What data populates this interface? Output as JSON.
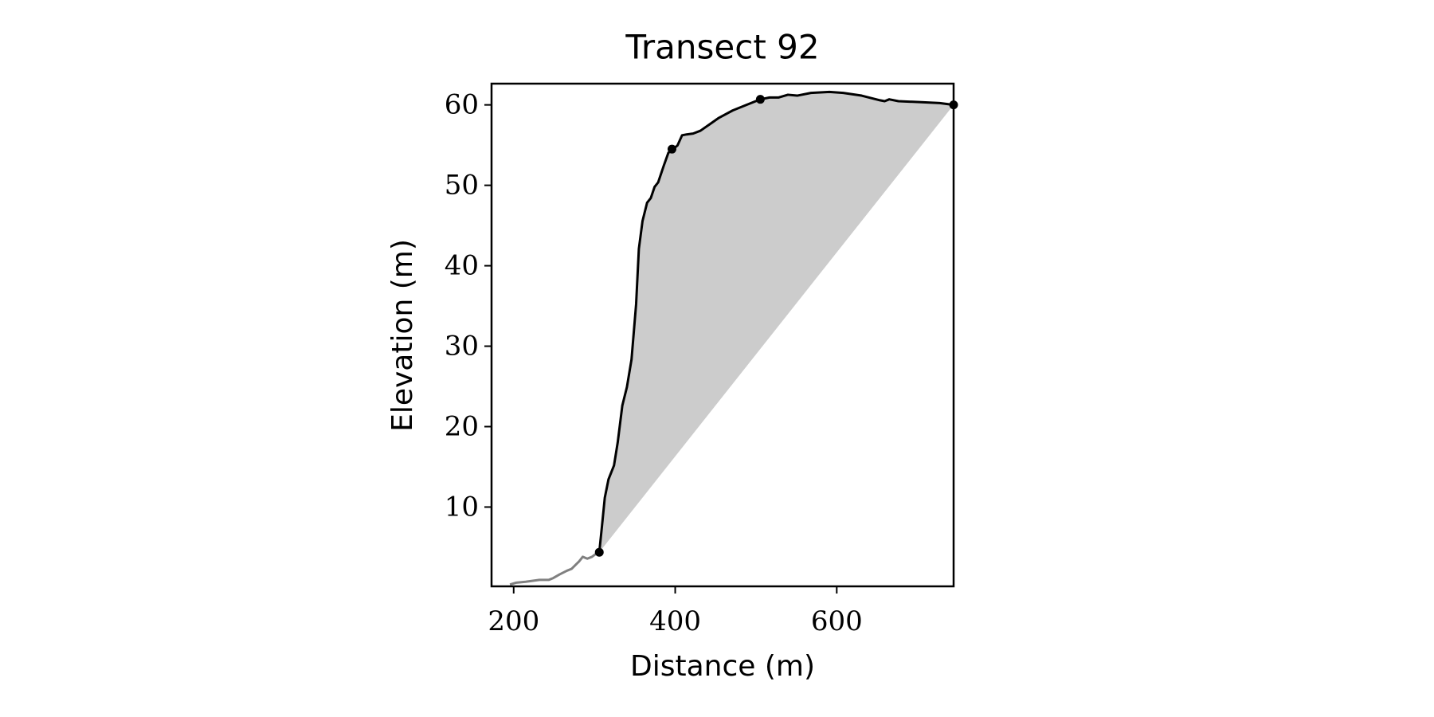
{
  "chart_data": {
    "type": "line",
    "title": "Transect 92",
    "x_label": "Distance (m)",
    "y_label": "Elevation (m)",
    "xlim": [
      172.6,
      744.7
    ],
    "ylim": [
      0.14,
      62.64
    ],
    "xticks": [
      200,
      400,
      600
    ],
    "yticks": [
      10,
      20,
      30,
      40,
      50,
      60
    ],
    "grid": false,
    "fill_color": "#cccccc",
    "series": [
      {
        "color": "#808080",
        "x": [
          195.4,
          203.4,
          214.8,
          231.9,
          243.3,
          249.0,
          257.0,
          266.1,
          271.8,
          277.5,
          280.9,
          285.5,
          291.2,
          296.9,
          301.4,
          306.0
        ],
        "values": [
          0.37,
          0.6,
          0.71,
          0.94,
          0.94,
          1.17,
          1.63,
          2.09,
          2.32,
          2.89,
          3.23,
          3.81,
          3.58,
          3.81,
          4.15,
          4.38
        ]
      },
      {
        "color": "#000000",
        "x": [
          306.0,
          309.4,
          312.8,
          317.4,
          324.2,
          328.8,
          334.5,
          340.2,
          345.9,
          351.6,
          355.0,
          359.5,
          365.2,
          369.8,
          374.4,
          378.9,
          385.8,
          391.5,
          397.2,
          402.8,
          408.5,
          414.2,
          422.2,
          431.3,
          442.7,
          454.1,
          471.2,
          488.3,
          505.4,
          516.8,
          528.2,
          539.6,
          551.0,
          568.1,
          590.9,
          608.0,
          630.8,
          653.6,
          659.3,
          665.0,
          676.4,
          704.8,
          727.6,
          744.7
        ],
        "values": [
          4.38,
          7.71,
          11.15,
          13.44,
          15.16,
          18.03,
          22.61,
          24.91,
          28.35,
          35.23,
          42.11,
          45.55,
          47.84,
          48.42,
          49.79,
          50.37,
          52.43,
          54.04,
          54.5,
          54.95,
          56.22,
          56.33,
          56.44,
          56.79,
          57.59,
          58.39,
          59.31,
          60.0,
          60.69,
          60.92,
          60.92,
          61.26,
          61.15,
          61.49,
          61.61,
          61.49,
          61.15,
          60.57,
          60.46,
          60.69,
          60.46,
          60.34,
          60.23,
          60.0
        ]
      }
    ],
    "markers": {
      "color": "#000000",
      "x": [
        306.0,
        396.0,
        505.4,
        744.7
      ],
      "values": [
        4.38,
        54.5,
        60.69,
        60.0
      ]
    }
  }
}
